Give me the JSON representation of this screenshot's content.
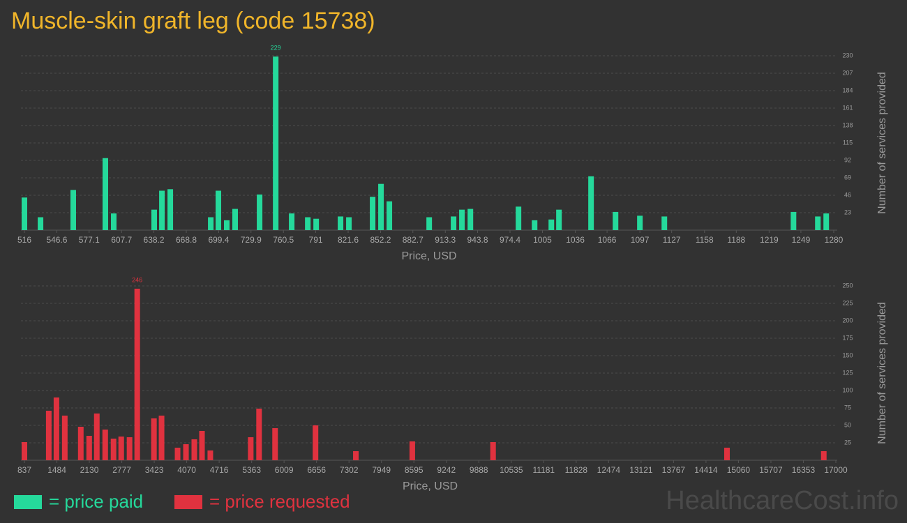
{
  "title": "Muscle-skin graft leg (code 15738)",
  "watermark": "HealthcareCost.info",
  "chart_data": [
    {
      "type": "bar",
      "x_label": "Price, USD",
      "y_label": "Number of services provided",
      "data_labels": "max",
      "grid": true,
      "x": [
        516,
        531.2,
        562.1,
        592.4,
        600.3,
        638.5,
        645.8,
        653.7,
        691.9,
        699.1,
        707.0,
        714.9,
        738.0,
        753.2,
        768.3,
        783.5,
        791.4,
        814.4,
        822.3,
        844.7,
        852.6,
        860.5,
        898.1,
        921.1,
        929.0,
        937.0,
        982.4,
        997.6,
        1013.4,
        1020.6,
        1050.9,
        1074.0,
        1097.0,
        1120.1,
        1242.0,
        1265.0,
        1272.9
      ],
      "series": [
        {
          "name": "= price paid",
          "color": "#25d99b",
          "values": [
            43,
            17,
            53,
            95,
            22,
            27,
            52,
            54,
            17,
            52,
            13,
            28,
            47,
            229,
            22,
            17,
            15,
            18,
            17,
            44,
            61,
            38,
            17,
            18,
            27,
            28,
            31,
            13,
            14,
            27,
            71,
            24,
            19,
            18,
            24,
            18,
            22
          ]
        }
      ],
      "xlim": [
        516,
        1280
      ],
      "xticks": [
        516,
        546.6,
        577.1,
        607.7,
        638.2,
        668.8,
        699.4,
        729.9,
        760.5,
        791,
        821.6,
        852.2,
        882.7,
        913.3,
        943.8,
        974.4,
        1005,
        1036,
        1066,
        1097,
        1127,
        1158,
        1188,
        1219,
        1249,
        1280
      ],
      "ylim": [
        0,
        230
      ],
      "yticks": [
        23,
        46,
        69,
        92,
        115,
        138,
        161,
        184,
        207,
        230
      ]
    },
    {
      "type": "bar",
      "x_label": "Price, USD",
      "y_label": "Number of services provided",
      "data_labels": "max",
      "grid": true,
      "x": [
        837,
        1322,
        1475,
        1641,
        1960,
        2127,
        2279,
        2446,
        2612,
        2765,
        2931,
        3084,
        3417,
        3569,
        3888,
        4055,
        4221,
        4374,
        4540,
        5345,
        5511,
        5830,
        6635,
        7439,
        8563,
        10172,
        14832,
        16760
      ],
      "series": [
        {
          "name": "= price requested",
          "color": "#e0323f",
          "values": [
            26,
            71,
            90,
            64,
            48,
            35,
            67,
            44,
            31,
            34,
            33,
            246,
            60,
            64,
            18,
            23,
            30,
            42,
            14,
            33,
            74,
            46,
            50,
            13,
            27,
            26,
            18,
            13
          ]
        }
      ],
      "xlim": [
        837,
        17000
      ],
      "xticks": [
        837,
        1484,
        2130,
        2777,
        3423,
        4070,
        4716,
        5363,
        6009,
        6656,
        7302,
        7949,
        8595,
        9242,
        9888,
        10535,
        11181,
        11828,
        12474,
        13121,
        13767,
        14414,
        15060,
        15707,
        16353,
        17000
      ],
      "ylim": [
        0,
        250
      ],
      "yticks": [
        25,
        50,
        75,
        100,
        125,
        150,
        175,
        200,
        225,
        250
      ]
    }
  ]
}
